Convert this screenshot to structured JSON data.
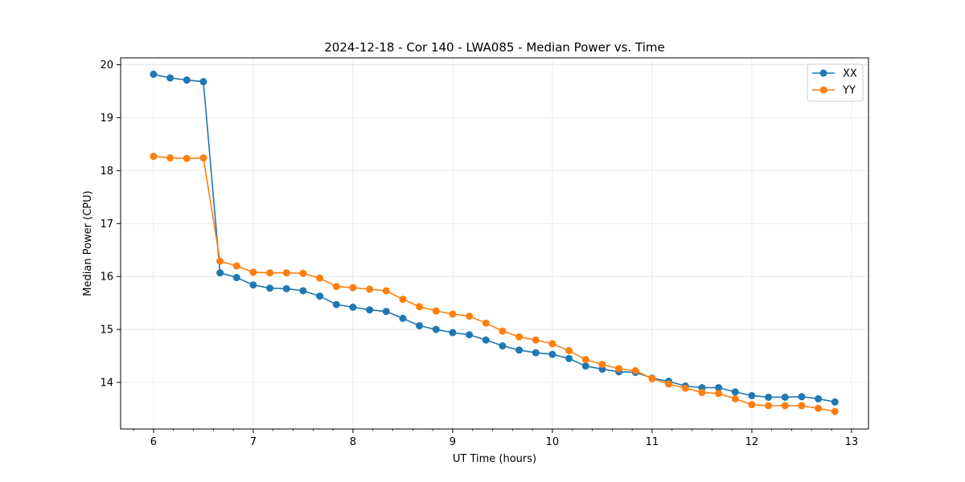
{
  "chart_data": {
    "type": "line",
    "title": "2024-12-18 - Cor 140 - LWA085 - Median Power vs. Time",
    "xlabel": "UT Time (hours)",
    "ylabel": "Median Power (CPU)",
    "xlim": [
      5.67,
      13.17
    ],
    "ylim": [
      13.12,
      20.13
    ],
    "xticks": [
      6,
      7,
      8,
      9,
      10,
      11,
      12,
      13
    ],
    "yticks": [
      14,
      15,
      16,
      17,
      18,
      19,
      20
    ],
    "grid": true,
    "legend_position": "top-right",
    "x": [
      6.0,
      6.1667,
      6.3333,
      6.5,
      6.6667,
      6.8333,
      7.0,
      7.1667,
      7.3333,
      7.5,
      7.6667,
      7.8333,
      8.0,
      8.1667,
      8.3333,
      8.5,
      8.6667,
      8.8333,
      9.0,
      9.1667,
      9.3333,
      9.5,
      9.6667,
      9.8333,
      10.0,
      10.1667,
      10.3333,
      10.5,
      10.6667,
      10.8333,
      11.0,
      11.1667,
      11.3333,
      11.5,
      11.6667,
      11.8333,
      12.0,
      12.1667,
      12.3333,
      12.5,
      12.6667,
      12.8333
    ],
    "series": [
      {
        "name": "XX",
        "color": "#1f77b4",
        "values": [
          19.82,
          19.75,
          19.71,
          19.68,
          16.07,
          15.98,
          15.84,
          15.78,
          15.77,
          15.73,
          15.63,
          15.47,
          15.42,
          15.37,
          15.34,
          15.21,
          15.07,
          15.0,
          14.94,
          14.9,
          14.8,
          14.69,
          14.61,
          14.56,
          14.53,
          14.45,
          14.31,
          14.25,
          14.2,
          14.19,
          14.08,
          14.02,
          13.93,
          13.9,
          13.9,
          13.82,
          13.75,
          13.72,
          13.72,
          13.73,
          13.69,
          13.63
        ]
      },
      {
        "name": "YY",
        "color": "#ff7f0e",
        "values": [
          18.27,
          18.24,
          18.23,
          18.24,
          16.29,
          16.2,
          16.08,
          16.07,
          16.07,
          16.06,
          15.97,
          15.81,
          15.79,
          15.76,
          15.73,
          15.57,
          15.43,
          15.35,
          15.29,
          15.25,
          15.12,
          14.97,
          14.86,
          14.8,
          14.73,
          14.6,
          14.43,
          14.34,
          14.26,
          14.22,
          14.07,
          13.97,
          13.89,
          13.81,
          13.79,
          13.69,
          13.58,
          13.56,
          13.56,
          13.56,
          13.51,
          13.45
        ]
      }
    ]
  }
}
